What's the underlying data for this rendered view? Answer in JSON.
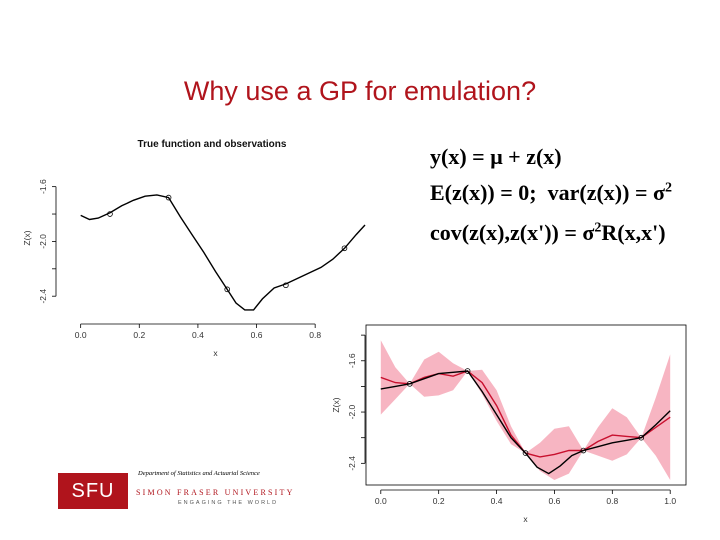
{
  "slide": {
    "title": "Why use a GP for emulation?"
  },
  "equations": {
    "line1": "y(x) = μ + z(x)",
    "line2_a": "E(z(x)) = 0;",
    "line2_b": "var(z(x)) = σ",
    "line2_sup": "2",
    "line3_a": "cov(z(x),z(x')) = σ",
    "line3_sup": "2",
    "line3_b": "R(x,x')"
  },
  "logo": {
    "department": "Department of Statistics and Actuarial Science",
    "box_text": "SFU",
    "university": "SIMON FRASER UNIVERSITY",
    "tagline": "ENGAGING THE WORLD"
  },
  "colors": {
    "title": "#b0141c",
    "band": "#f7b5c2",
    "fitted": "#c8102e",
    "truth": "#000000"
  },
  "chart_data": [
    {
      "type": "line",
      "title": "True function and observations",
      "xlabel": "x",
      "ylabel": "Z(x)",
      "xlim": [
        -0.05,
        0.97
      ],
      "ylim": [
        -2.53,
        -1.42
      ],
      "x_ticks": [
        "0.0",
        "0.2",
        "0.4",
        "0.6",
        "0.8"
      ],
      "x_tick_values": [
        0.0,
        0.2,
        0.4,
        0.6,
        0.8
      ],
      "y_ticks": [
        "-1.6",
        "-2.0",
        "-2.4"
      ],
      "y_tick_values": [
        -1.6,
        -2.0,
        -2.4
      ],
      "series": [
        {
          "role": "true function",
          "x": [
            0.0,
            0.03,
            0.06,
            0.1,
            0.14,
            0.18,
            0.22,
            0.26,
            0.3,
            0.34,
            0.38,
            0.42,
            0.46,
            0.5,
            0.53,
            0.56,
            0.59,
            0.62,
            0.66,
            0.7,
            0.74,
            0.78,
            0.82,
            0.86,
            0.9,
            0.94,
            0.97
          ],
          "values": [
            -1.81,
            -1.84,
            -1.83,
            -1.79,
            -1.74,
            -1.7,
            -1.67,
            -1.66,
            -1.68,
            -1.82,
            -1.95,
            -2.08,
            -2.22,
            -2.35,
            -2.45,
            -2.5,
            -2.5,
            -2.42,
            -2.34,
            -2.31,
            -2.27,
            -2.23,
            -2.19,
            -2.13,
            -2.05,
            -1.95,
            -1.88
          ]
        }
      ],
      "observations": {
        "x": [
          0.1,
          0.3,
          0.5,
          0.7,
          0.9
        ],
        "values": [
          -1.8,
          -1.68,
          -2.35,
          -2.32,
          -2.05
        ]
      }
    },
    {
      "type": "line",
      "xlabel": "x",
      "ylabel": "Z(x)",
      "xlim": [
        -0.02,
        1.02
      ],
      "ylim": [
        -2.53,
        -1.36
      ],
      "x_ticks": [
        "0.0",
        "0.2",
        "0.4",
        "0.6",
        "0.8",
        "1.0"
      ],
      "x_tick_values": [
        0.0,
        0.2,
        0.4,
        0.6,
        0.8,
        1.0
      ],
      "y_ticks": [
        "-1.6",
        "-2.0",
        "-2.4"
      ],
      "y_tick_values": [
        -1.6,
        -2.0,
        -2.4
      ],
      "band": {
        "role": "prediction interval",
        "x": [
          0.0,
          0.05,
          0.1,
          0.15,
          0.2,
          0.25,
          0.3,
          0.35,
          0.4,
          0.45,
          0.5,
          0.55,
          0.6,
          0.65,
          0.7,
          0.75,
          0.8,
          0.85,
          0.9,
          0.95,
          1.0
        ],
        "lower": [
          -2.02,
          -1.9,
          -1.78,
          -1.88,
          -1.87,
          -1.83,
          -1.68,
          -1.86,
          -2.07,
          -2.25,
          -2.32,
          -2.46,
          -2.53,
          -2.48,
          -2.3,
          -2.34,
          -2.38,
          -2.33,
          -2.2,
          -2.34,
          -2.53
        ],
        "upper": [
          -1.44,
          -1.65,
          -1.78,
          -1.59,
          -1.53,
          -1.62,
          -1.68,
          -1.67,
          -1.83,
          -2.11,
          -2.32,
          -2.24,
          -2.13,
          -2.11,
          -2.3,
          -2.12,
          -1.97,
          -2.04,
          -2.2,
          -1.89,
          -1.55
        ]
      },
      "series": [
        {
          "role": "fitted mean",
          "x": [
            0.0,
            0.05,
            0.1,
            0.15,
            0.2,
            0.25,
            0.3,
            0.35,
            0.4,
            0.45,
            0.5,
            0.55,
            0.6,
            0.65,
            0.7,
            0.75,
            0.8,
            0.85,
            0.9,
            0.95,
            1.0
          ],
          "values": [
            -1.73,
            -1.77,
            -1.78,
            -1.73,
            -1.7,
            -1.72,
            -1.68,
            -1.77,
            -1.95,
            -2.18,
            -2.32,
            -2.35,
            -2.33,
            -2.3,
            -2.3,
            -2.23,
            -2.18,
            -2.19,
            -2.2,
            -2.12,
            -2.04
          ]
        },
        {
          "role": "true function",
          "x": [
            0.0,
            0.05,
            0.1,
            0.15,
            0.2,
            0.25,
            0.3,
            0.35,
            0.4,
            0.45,
            0.5,
            0.54,
            0.58,
            0.62,
            0.66,
            0.7,
            0.75,
            0.8,
            0.85,
            0.9,
            0.95,
            1.0
          ],
          "values": [
            -1.82,
            -1.8,
            -1.78,
            -1.74,
            -1.7,
            -1.69,
            -1.68,
            -1.84,
            -2.02,
            -2.2,
            -2.32,
            -2.43,
            -2.48,
            -2.42,
            -2.34,
            -2.3,
            -2.27,
            -2.24,
            -2.22,
            -2.2,
            -2.1,
            -1.99
          ]
        }
      ],
      "observations": {
        "x": [
          0.1,
          0.3,
          0.5,
          0.7,
          0.9
        ],
        "values": [
          -1.78,
          -1.68,
          -2.32,
          -2.3,
          -2.2
        ]
      }
    }
  ]
}
